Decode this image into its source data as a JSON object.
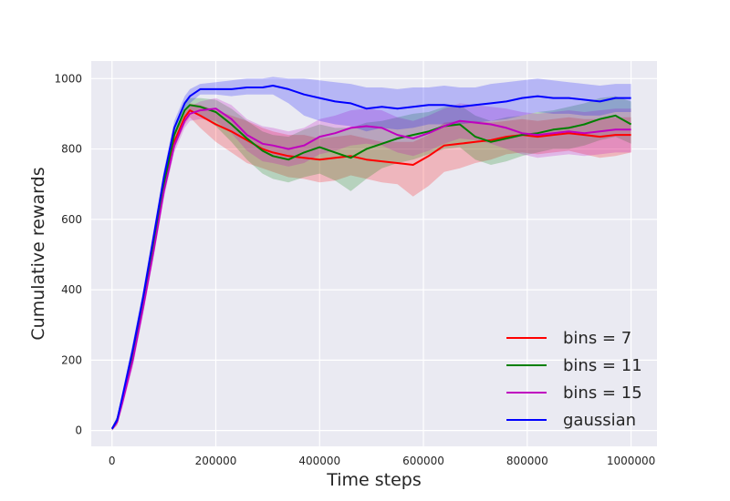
{
  "chart_data": {
    "type": "line",
    "xlabel": "Time steps",
    "ylabel": "Cumulative rewards",
    "xlim": [
      -40000,
      1050000
    ],
    "ylim": [
      -45,
      1050
    ],
    "xticks": [
      0,
      200000,
      400000,
      600000,
      800000,
      1000000
    ],
    "xtick_labels": [
      "0",
      "200000",
      "400000",
      "600000",
      "800000",
      "1000000"
    ],
    "yticks": [
      0,
      200,
      400,
      600,
      800,
      1000
    ],
    "ytick_labels": [
      "0",
      "200",
      "400",
      "600",
      "800",
      "1000"
    ],
    "grid": true,
    "legend_position": "lower-right",
    "series": [
      {
        "name": "bins = 7",
        "color": "#ff0000",
        "x": [
          0,
          10000,
          20000,
          40000,
          60000,
          80000,
          100000,
          120000,
          140000,
          150000,
          170000,
          200000,
          230000,
          260000,
          290000,
          310000,
          340000,
          370000,
          400000,
          430000,
          460000,
          490000,
          520000,
          550000,
          580000,
          610000,
          640000,
          670000,
          700000,
          730000,
          760000,
          790000,
          820000,
          850000,
          880000,
          910000,
          940000,
          970000,
          1000000
        ],
        "y": [
          5,
          25,
          85,
          210,
          360,
          520,
          690,
          820,
          890,
          910,
          895,
          870,
          850,
          825,
          800,
          790,
          780,
          775,
          770,
          775,
          780,
          770,
          765,
          760,
          755,
          780,
          810,
          815,
          820,
          825,
          835,
          840,
          835,
          840,
          845,
          840,
          835,
          840,
          840
        ],
        "band": [
          [
            0,
            10
          ],
          [
            15,
            35
          ],
          [
            70,
            100
          ],
          [
            190,
            230
          ],
          [
            340,
            380
          ],
          [
            500,
            540
          ],
          [
            670,
            710
          ],
          [
            800,
            840
          ],
          [
            870,
            910
          ],
          [
            890,
            930
          ],
          [
            860,
            925
          ],
          [
            820,
            910
          ],
          [
            790,
            895
          ],
          [
            760,
            880
          ],
          [
            745,
            860
          ],
          [
            735,
            850
          ],
          [
            720,
            840
          ],
          [
            715,
            840
          ],
          [
            705,
            830
          ],
          [
            710,
            835
          ],
          [
            725,
            840
          ],
          [
            715,
            830
          ],
          [
            705,
            820
          ],
          [
            700,
            820
          ],
          [
            665,
            820
          ],
          [
            695,
            840
          ],
          [
            735,
            875
          ],
          [
            745,
            880
          ],
          [
            760,
            880
          ],
          [
            770,
            875
          ],
          [
            785,
            880
          ],
          [
            790,
            885
          ],
          [
            785,
            880
          ],
          [
            790,
            885
          ],
          [
            795,
            890
          ],
          [
            785,
            885
          ],
          [
            775,
            885
          ],
          [
            780,
            890
          ],
          [
            790,
            890
          ]
        ]
      },
      {
        "name": "bins = 11",
        "color": "#008000",
        "x": [
          0,
          10000,
          20000,
          40000,
          60000,
          80000,
          100000,
          120000,
          140000,
          150000,
          170000,
          200000,
          230000,
          260000,
          290000,
          310000,
          340000,
          370000,
          400000,
          430000,
          460000,
          490000,
          520000,
          550000,
          580000,
          610000,
          640000,
          670000,
          700000,
          730000,
          760000,
          790000,
          820000,
          850000,
          880000,
          910000,
          940000,
          970000,
          1000000
        ],
        "y": [
          5,
          30,
          90,
          220,
          370,
          530,
          700,
          840,
          910,
          925,
          920,
          905,
          870,
          830,
          795,
          780,
          770,
          790,
          805,
          790,
          775,
          800,
          815,
          830,
          840,
          850,
          865,
          870,
          835,
          820,
          830,
          840,
          845,
          855,
          860,
          870,
          885,
          895,
          870
        ],
        "band": [
          [
            0,
            10
          ],
          [
            20,
            40
          ],
          [
            75,
            105
          ],
          [
            200,
            240
          ],
          [
            350,
            390
          ],
          [
            510,
            550
          ],
          [
            680,
            720
          ],
          [
            820,
            860
          ],
          [
            890,
            930
          ],
          [
            905,
            945
          ],
          [
            895,
            945
          ],
          [
            865,
            940
          ],
          [
            820,
            915
          ],
          [
            770,
            880
          ],
          [
            730,
            850
          ],
          [
            715,
            840
          ],
          [
            705,
            835
          ],
          [
            720,
            855
          ],
          [
            730,
            870
          ],
          [
            710,
            860
          ],
          [
            680,
            860
          ],
          [
            715,
            875
          ],
          [
            745,
            880
          ],
          [
            760,
            890
          ],
          [
            770,
            900
          ],
          [
            785,
            905
          ],
          [
            800,
            920
          ],
          [
            805,
            925
          ],
          [
            770,
            895
          ],
          [
            755,
            880
          ],
          [
            765,
            890
          ],
          [
            780,
            895
          ],
          [
            790,
            905
          ],
          [
            800,
            910
          ],
          [
            800,
            920
          ],
          [
            810,
            930
          ],
          [
            825,
            945
          ],
          [
            835,
            950
          ],
          [
            815,
            935
          ]
        ]
      },
      {
        "name": "bins = 15",
        "color": "#bf00bf",
        "x": [
          0,
          10000,
          20000,
          40000,
          60000,
          80000,
          100000,
          120000,
          140000,
          150000,
          170000,
          200000,
          230000,
          260000,
          290000,
          310000,
          340000,
          370000,
          400000,
          430000,
          460000,
          490000,
          520000,
          550000,
          580000,
          610000,
          640000,
          670000,
          700000,
          730000,
          760000,
          790000,
          820000,
          850000,
          880000,
          910000,
          940000,
          970000,
          1000000
        ],
        "y": [
          5,
          25,
          80,
          200,
          350,
          510,
          680,
          810,
          880,
          900,
          910,
          915,
          885,
          840,
          815,
          810,
          800,
          810,
          835,
          845,
          860,
          865,
          860,
          840,
          830,
          845,
          865,
          880,
          875,
          870,
          860,
          845,
          840,
          845,
          850,
          845,
          850,
          855,
          855
        ],
        "band": [
          [
            0,
            10
          ],
          [
            15,
            35
          ],
          [
            65,
            95
          ],
          [
            180,
            220
          ],
          [
            330,
            370
          ],
          [
            490,
            530
          ],
          [
            660,
            700
          ],
          [
            790,
            830
          ],
          [
            860,
            900
          ],
          [
            880,
            920
          ],
          [
            885,
            935
          ],
          [
            880,
            945
          ],
          [
            845,
            925
          ],
          [
            795,
            885
          ],
          [
            765,
            865
          ],
          [
            760,
            860
          ],
          [
            750,
            850
          ],
          [
            760,
            860
          ],
          [
            785,
            885
          ],
          [
            795,
            895
          ],
          [
            810,
            910
          ],
          [
            815,
            915
          ],
          [
            810,
            910
          ],
          [
            790,
            890
          ],
          [
            780,
            880
          ],
          [
            795,
            895
          ],
          [
            815,
            915
          ],
          [
            830,
            930
          ],
          [
            825,
            925
          ],
          [
            815,
            920
          ],
          [
            800,
            915
          ],
          [
            785,
            905
          ],
          [
            775,
            900
          ],
          [
            780,
            905
          ],
          [
            785,
            910
          ],
          [
            780,
            905
          ],
          [
            785,
            910
          ],
          [
            790,
            915
          ],
          [
            790,
            915
          ]
        ]
      },
      {
        "name": "gaussian",
        "color": "#0000ff",
        "x": [
          0,
          10000,
          20000,
          40000,
          60000,
          80000,
          100000,
          120000,
          140000,
          150000,
          170000,
          200000,
          230000,
          260000,
          290000,
          310000,
          340000,
          370000,
          400000,
          430000,
          460000,
          490000,
          520000,
          550000,
          580000,
          610000,
          640000,
          670000,
          700000,
          730000,
          760000,
          790000,
          820000,
          850000,
          880000,
          910000,
          940000,
          970000,
          1000000
        ],
        "y": [
          5,
          30,
          95,
          230,
          380,
          550,
          720,
          860,
          930,
          950,
          970,
          970,
          970,
          975,
          975,
          980,
          970,
          955,
          945,
          935,
          930,
          915,
          920,
          915,
          920,
          925,
          925,
          920,
          925,
          930,
          935,
          945,
          950,
          945,
          945,
          940,
          935,
          945,
          945
        ],
        "band": [
          [
            0,
            10
          ],
          [
            20,
            40
          ],
          [
            80,
            110
          ],
          [
            210,
            250
          ],
          [
            360,
            400
          ],
          [
            530,
            570
          ],
          [
            700,
            740
          ],
          [
            840,
            880
          ],
          [
            910,
            950
          ],
          [
            930,
            970
          ],
          [
            955,
            985
          ],
          [
            955,
            990
          ],
          [
            950,
            995
          ],
          [
            955,
            1000
          ],
          [
            955,
            1000
          ],
          [
            955,
            1005
          ],
          [
            930,
            1000
          ],
          [
            895,
            1000
          ],
          [
            880,
            995
          ],
          [
            870,
            990
          ],
          [
            865,
            985
          ],
          [
            850,
            975
          ],
          [
            860,
            975
          ],
          [
            855,
            970
          ],
          [
            860,
            975
          ],
          [
            870,
            975
          ],
          [
            870,
            980
          ],
          [
            870,
            975
          ],
          [
            875,
            975
          ],
          [
            880,
            985
          ],
          [
            885,
            990
          ],
          [
            895,
            995
          ],
          [
            905,
            1000
          ],
          [
            900,
            995
          ],
          [
            900,
            990
          ],
          [
            895,
            985
          ],
          [
            895,
            980
          ],
          [
            905,
            985
          ],
          [
            905,
            985
          ]
        ]
      }
    ]
  }
}
